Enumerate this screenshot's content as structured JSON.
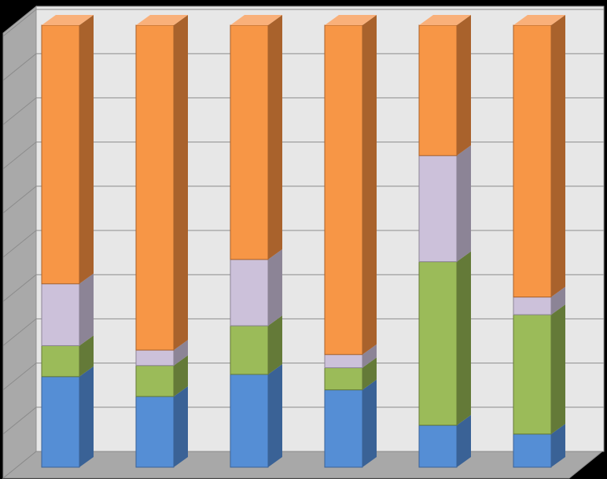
{
  "chart_data": {
    "type": "bar",
    "stacked": true,
    "percent_stacked": true,
    "three_d": true,
    "ylim": [
      0,
      100
    ],
    "grid": true,
    "legend": "none",
    "categories": [
      "",
      "",
      "",
      "",
      "",
      ""
    ],
    "series": [
      {
        "color": "#558ED5",
        "side": "#3A6296",
        "top": "#6FA3E6",
        "values": [
          20.5,
          16,
          21,
          17.5,
          9.5,
          7.5
        ]
      },
      {
        "color": "#9BBB59",
        "side": "#647A38",
        "top": "#B5D27A",
        "values": [
          7,
          7,
          11,
          5,
          37,
          27
        ]
      },
      {
        "color": "#CCC1DA",
        "side": "#8C8496",
        "top": "#DDD5E8",
        "values": [
          14,
          3.5,
          15,
          3,
          24,
          4
        ]
      },
      {
        "color": "#F79646",
        "side": "#A9622C",
        "top": "#F9B07A",
        "values": [
          58.5,
          73.5,
          53,
          74.5,
          29.5,
          61.5
        ]
      }
    ]
  }
}
